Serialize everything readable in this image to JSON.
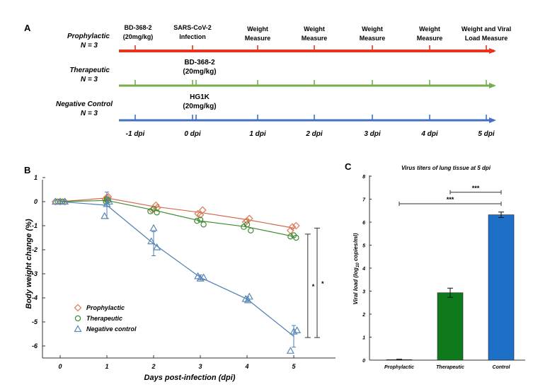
{
  "colors": {
    "prophylactic": "#e8331d",
    "therapeutic": "#76ad4d",
    "control": "#4470c1",
    "prophylactic_marker": "#d87b55",
    "therapeutic_marker": "#3f8a31",
    "control_marker": "#5a89b5",
    "bar_therapeutic": "#0f7a1c",
    "bar_control": "#1e6fc8"
  },
  "panelA": {
    "letter": "A",
    "groups": [
      {
        "key": "prophylactic",
        "name": "Prophylactic",
        "n": "N = 3"
      },
      {
        "key": "therapeutic",
        "name": "Therapeutic",
        "n": "N = 3"
      },
      {
        "key": "negative",
        "name": "Negative Control",
        "n": "N = 3"
      }
    ],
    "top_events": [
      {
        "line1": "BD-368-2",
        "line2": "(20mg/kg)"
      },
      {
        "line1": "SARS-CoV-2",
        "line2": "Infection"
      },
      {
        "line1": "Weight",
        "line2": "Measure"
      },
      {
        "line1": "Weight",
        "line2": "Measure"
      },
      {
        "line1": "Weight",
        "line2": "Measure"
      },
      {
        "line1": "Weight",
        "line2": "Measure"
      },
      {
        "line1": "Weight and Viral",
        "line2": "Load Measure"
      }
    ],
    "therapeutic_drug": {
      "line1": "BD-368-2",
      "line2": "(20mg/kg)"
    },
    "control_drug": {
      "line1": "HG1K",
      "line2": "(20mg/kg)"
    },
    "days": [
      "-1 dpi",
      "0 dpi",
      "1 dpi",
      "2 dpi",
      "3 dpi",
      "4 dpi",
      "5 dpi"
    ]
  },
  "chart_data": [
    {
      "panel": "B",
      "type": "line",
      "xlabel": "Days post-infection (dpi)",
      "ylabel": "Body weight change (%)",
      "x_ticks": [
        "0",
        "1",
        "2",
        "3",
        "4",
        "5"
      ],
      "y_ticks": [
        "1",
        "0",
        "-1",
        "-2",
        "-3",
        "-4",
        "-5",
        "-6"
      ],
      "xlim": [
        -0.3,
        5.9
      ],
      "ylim": [
        -6.35,
        1
      ],
      "legend_position": "bottom-left",
      "series": [
        {
          "name": "Prophylactic",
          "marker": "diamond",
          "mean": [
            [
              0,
              0
            ],
            [
              1,
              0.15
            ],
            [
              2,
              -0.2
            ],
            [
              3,
              -0.45
            ],
            [
              4,
              -0.75
            ],
            [
              5,
              -1.1
            ]
          ],
          "points": [
            [
              -0.1,
              0
            ],
            [
              0,
              0
            ],
            [
              0.1,
              0
            ],
            [
              1,
              0.18
            ],
            [
              0.97,
              0.1
            ],
            [
              1.03,
              0.2
            ],
            [
              1.97,
              -0.35
            ],
            [
              2.05,
              -0.15
            ],
            [
              2.08,
              -0.25
            ],
            [
              2.95,
              -0.5
            ],
            [
              3.05,
              -0.35
            ],
            [
              3.0,
              -0.55
            ],
            [
              3.97,
              -0.85
            ],
            [
              4.05,
              -0.7
            ],
            [
              4.0,
              -0.8
            ],
            [
              4.97,
              -1.05
            ],
            [
              5.05,
              -1.0
            ],
            [
              4.93,
              -1.2
            ]
          ]
        },
        {
          "name": "Therapeutic",
          "marker": "circle",
          "mean": [
            [
              0,
              0
            ],
            [
              1,
              0.05
            ],
            [
              2,
              -0.35
            ],
            [
              3,
              -0.8
            ],
            [
              4,
              -1.05
            ],
            [
              5,
              -1.45
            ]
          ],
          "points": [
            [
              -0.05,
              0
            ],
            [
              0.05,
              0
            ],
            [
              1,
              0.1
            ],
            [
              0.98,
              0
            ],
            [
              1.03,
              0.05
            ],
            [
              1.93,
              -0.4
            ],
            [
              2.0,
              -0.3
            ],
            [
              2.07,
              -0.45
            ],
            [
              2.93,
              -0.8
            ],
            [
              3.07,
              -0.95
            ],
            [
              3.0,
              -0.75
            ],
            [
              3.93,
              -1.05
            ],
            [
              4.08,
              -1.2
            ],
            [
              4.0,
              -0.95
            ],
            [
              4.93,
              -1.45
            ],
            [
              5.05,
              -1.5
            ],
            [
              5.0,
              -1.4
            ]
          ]
        },
        {
          "name": "Negative control",
          "marker": "triangle",
          "mean": [
            [
              0,
              0
            ],
            [
              1,
              -0.15
            ],
            [
              2,
              -1.75
            ],
            [
              3,
              -3.15
            ],
            [
              4,
              -4.05
            ],
            [
              5,
              -5.6
            ]
          ],
          "err": [
            0,
            0.55,
            0.5,
            0.1,
            0.1,
            0.45
          ],
          "points": [
            [
              -0.1,
              0
            ],
            [
              0,
              0
            ],
            [
              0.1,
              0
            ],
            [
              0.95,
              -0.6
            ],
            [
              1.0,
              -0.1
            ],
            [
              1.05,
              0
            ],
            [
              1.95,
              -1.65
            ],
            [
              2.0,
              -1.1
            ],
            [
              2.07,
              -1.9
            ],
            [
              2.95,
              -3.1
            ],
            [
              3.0,
              -3.2
            ],
            [
              3.07,
              -3.15
            ],
            [
              3.97,
              -4.05
            ],
            [
              4.05,
              -3.95
            ],
            [
              4.02,
              -4.1
            ],
            [
              4.93,
              -6.2
            ],
            [
              5.0,
              -5.4
            ],
            [
              5.07,
              -5.35
            ]
          ]
        }
      ],
      "significance": [
        {
          "label": "*",
          "x": 5.3,
          "y_top": -1.35,
          "y_bottom": -5.65
        },
        {
          "label": "*",
          "x": 5.5,
          "y_top": -1.1,
          "y_bottom": -5.65
        }
      ]
    },
    {
      "panel": "C",
      "type": "bar",
      "title": "Virus titers of lung tissue at 5 dpi",
      "ylabel": "Viral load (log10 copies/ml)",
      "ylabel_main": "Viral load (log",
      "ylabel_sub": "10",
      "ylabel_rest": " copies/ml)",
      "categories": [
        "Prophylactic",
        "Therapeutic",
        "Control"
      ],
      "values": [
        0.02,
        2.93,
        6.32
      ],
      "errors": [
        0.02,
        0.2,
        0.12
      ],
      "ylim": [
        0,
        8
      ],
      "y_ticks": [
        "0",
        "1",
        "2",
        "3",
        "4",
        "5",
        "6",
        "7",
        "8"
      ],
      "significance": [
        {
          "label": "***",
          "from": 1,
          "to": 2,
          "y": 7.3
        },
        {
          "label": "***",
          "from": 0,
          "to": 2,
          "y": 6.8
        }
      ]
    }
  ]
}
